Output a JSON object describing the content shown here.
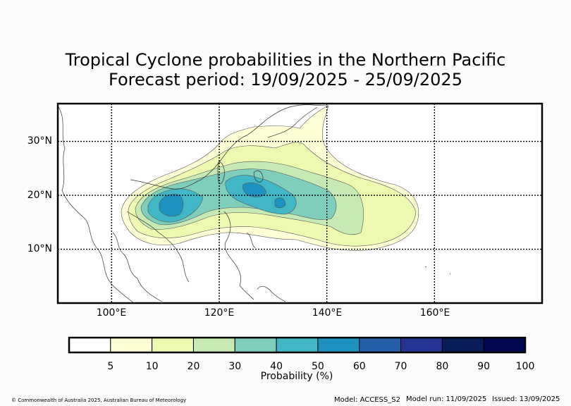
{
  "title": {
    "line1": "Tropical Cyclone probabilities in the Northern Pacific",
    "line2": "Forecast period: 19/09/2025 - 25/09/2025"
  },
  "map": {
    "lon_range": [
      90,
      180
    ],
    "lat_range": [
      0,
      37
    ],
    "lat_ticks": [
      {
        "value": 30,
        "label": "30°N"
      },
      {
        "value": 20,
        "label": "20°N"
      },
      {
        "value": 10,
        "label": "10°N"
      }
    ],
    "lon_ticks": [
      {
        "value": 100,
        "label": "100°E"
      },
      {
        "value": 120,
        "label": "120°E"
      },
      {
        "value": 140,
        "label": "140°E"
      },
      {
        "value": 160,
        "label": "160°E"
      }
    ],
    "grid": "dotted"
  },
  "colorbar": {
    "label": "Probability (%)",
    "ticks": [
      "5",
      "10",
      "20",
      "30",
      "40",
      "50",
      "60",
      "70",
      "80",
      "90",
      "100"
    ],
    "colors": [
      "#ffffff",
      "#ffffd6",
      "#edf8b1",
      "#c7e9b4",
      "#7fcdbb",
      "#41b6c4",
      "#1d91c0",
      "#225ea8",
      "#253494",
      "#081d58",
      "#030751"
    ]
  },
  "footer": {
    "copyright": "© Commonwealth of Australia 2025, Australian Bureau of Meteorology",
    "model": "Model: ACCESS_S2",
    "model_run": "Model run: 11/09/2025",
    "issued": "Issued: 13/09/2025"
  }
}
